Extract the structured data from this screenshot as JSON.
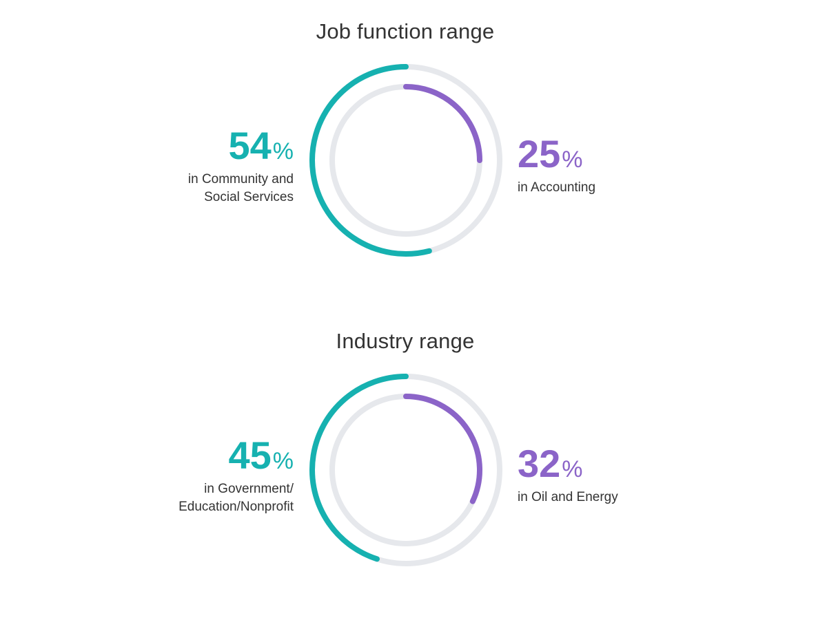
{
  "colors": {
    "outer": "#16b1b0",
    "inner": "#8b64c8",
    "track": "#e6e8ec",
    "text": "#333333"
  },
  "chart_data": [
    {
      "type": "radial-bar",
      "title": "Job function range",
      "unit": "%",
      "series": [
        {
          "ring": "outer",
          "value": 54,
          "label": "in Community and Social Services",
          "label_lines": [
            "in Community and",
            "Social Services"
          ]
        },
        {
          "ring": "inner",
          "value": 25,
          "label": "in Accounting",
          "label_lines": [
            "in Accounting"
          ]
        }
      ]
    },
    {
      "type": "radial-bar",
      "title": "Industry range",
      "unit": "%",
      "series": [
        {
          "ring": "outer",
          "value": 45,
          "label": "in Government/Education/Nonprofit",
          "label_lines": [
            "in Government/",
            "Education/Nonprofit"
          ]
        },
        {
          "ring": "inner",
          "value": 32,
          "label": "in Oil and Energy",
          "label_lines": [
            "in Oil and Energy"
          ]
        }
      ]
    }
  ]
}
